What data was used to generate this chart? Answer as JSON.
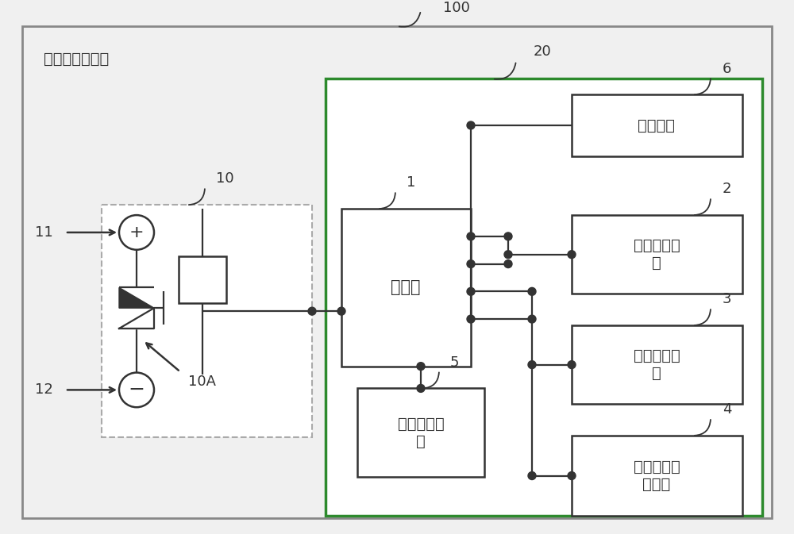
{
  "bg_color": "#f0f0f0",
  "outer_box_ec": "#999999",
  "inner_box20_ec": "#2d8a2d",
  "box_ec": "#333333",
  "line_color": "#333333",
  "title_outer": "100",
  "title_charge": "充放电控制装置",
  "title_inner20": "20",
  "label_1": "1",
  "label_2": "2",
  "label_3": "3",
  "label_4": "4",
  "label_5": "5",
  "label_6": "6",
  "label_10": "10",
  "label_10A": "10A",
  "label_11": "11",
  "label_12": "12",
  "text_processor": "处理器",
  "text_comm": "通讯接口",
  "text_voltage": "电压采集单\n元",
  "text_current": "电流采集单\n元",
  "text_temp": "内部温度采\n集单元",
  "text_storage": "数据存储单\n元",
  "font_size_main": 14,
  "font_size_label": 13,
  "font_size_small": 11
}
